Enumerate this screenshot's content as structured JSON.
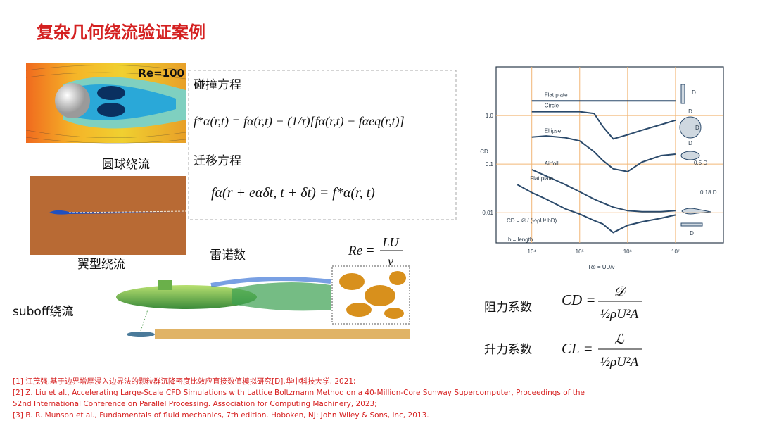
{
  "title": "复杂几何绕流验证案例",
  "sphere": {
    "badge": "Re=100",
    "caption": "圆球绕流"
  },
  "airfoil": {
    "caption": "翼型绕流"
  },
  "equations": {
    "collision_label": "碰撞方程",
    "collision": "f*α(r,t) = fα(r,t) − (1/τ)[fα(r,t) − fαeq(r,t)]",
    "streaming_label": "迁移方程",
    "streaming": "fα(r + eαδt, t + δt) = f*α(r, t)"
  },
  "reynolds": {
    "label": "雷诺数",
    "lhs": "Re =",
    "numerator": "LU",
    "denominator": "ν"
  },
  "suboff": {
    "caption": "suboff绕流"
  },
  "drag": {
    "label": "阻力系数",
    "lhs": "CD =",
    "numerator": "𝒟",
    "denominator": "½ρU²A"
  },
  "lift": {
    "label": "升力系数",
    "lhs": "CL =",
    "numerator": "ℒ",
    "denominator": "½ρU²A"
  },
  "references": [
    "[1] 江茂强.基于边界增厚浸入边界法的颗粒群沉降密度比效应直接数值模拟研究[D].华中科技大学, 2021;",
    "[2] Z. Liu et al., Accelerating Large-Scale CFD Simulations with Lattice Boltzmann Method on a 40-Million-Core Sunway Supercomputer, Proceedings of the",
    "52nd International Conference on Parallel Processing. Association for Computing Machinery, 2023;",
    "[3] B. R. Munson et al., Fundamentals of fluid mechanics, 7th edition. Hoboken, NJ: John Wiley & Sons, Inc, 2013."
  ],
  "chart_data": {
    "type": "line",
    "x_label": "Re = UD/ν",
    "y_label": "CD",
    "x_log": true,
    "y_log": true,
    "grid": true,
    "grid_color": "#f2b676",
    "xlim": [
      1800,
      100000000
    ],
    "ylim": [
      0.0024,
      10
    ],
    "xticks": [
      {
        "value": 10000,
        "label": "10⁴"
      },
      {
        "value": 100000,
        "label": "10⁵"
      },
      {
        "value": 1000000,
        "label": "10⁶"
      },
      {
        "value": 10000000,
        "label": "10⁷"
      }
    ],
    "yticks": [
      {
        "value": 1,
        "label": "1.0"
      },
      0.1,
      0.01
    ],
    "x": [
      5000,
      10000,
      20000,
      50000,
      100000,
      200000,
      300000,
      500000,
      1000000,
      2000000,
      5000000,
      10000000
    ],
    "series": [
      {
        "name": "Flat plate",
        "color": "#2b4a6b",
        "values": [
          null,
          2.0,
          2.0,
          2.0,
          2.0,
          2.0,
          2.0,
          2.0,
          2.0,
          2.0,
          2.0,
          2.0
        ]
      },
      {
        "name": "Circle",
        "color": "#2b4a6b",
        "values": [
          null,
          1.2,
          1.2,
          1.2,
          1.2,
          1.1,
          0.6,
          0.33,
          0.4,
          0.5,
          0.65,
          0.8
        ]
      },
      {
        "name": "Ellipse",
        "color": "#2b4a6b",
        "values": [
          null,
          0.36,
          0.38,
          0.35,
          0.3,
          0.18,
          0.12,
          0.08,
          0.07,
          0.11,
          0.15,
          0.16
        ]
      },
      {
        "name": "Airfoil",
        "color": "#2b4a6b",
        "values": [
          null,
          0.077,
          0.057,
          0.038,
          0.027,
          0.019,
          0.016,
          0.013,
          0.011,
          0.0105,
          0.0105,
          0.011
        ]
      },
      {
        "name": "Flat plate",
        "color": "#2b4a6b",
        "values": [
          0.038,
          0.026,
          0.019,
          0.012,
          0.0094,
          0.0069,
          0.0059,
          0.0039,
          0.0055,
          0.0065,
          0.0077,
          0.009
        ]
      }
    ],
    "annotations": [
      "D",
      "D",
      "D",
      "D",
      "0.5 D",
      "0.18 D",
      "D",
      "CD = 𝒟 / (½ρU² bD)",
      "b = length"
    ]
  }
}
